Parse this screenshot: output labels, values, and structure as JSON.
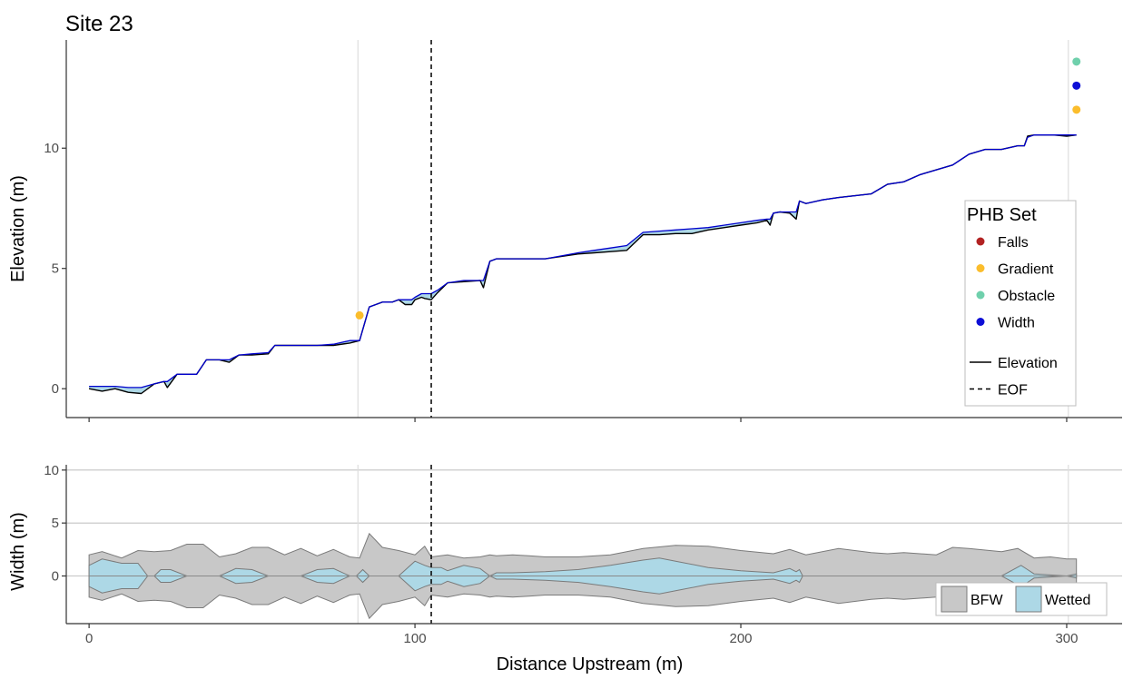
{
  "chart_data": [
    {
      "type": "line",
      "panel": "elevation",
      "title": "Site 23",
      "xlabel": "",
      "ylabel": "Elevation (m)",
      "xlim": [
        -7,
        317
      ],
      "ylim": [
        -1.2,
        14.5
      ],
      "x_ticks": [
        0,
        100,
        200,
        300
      ],
      "x_tick_labels": [
        "",
        "",
        "",
        ""
      ],
      "y_ticks": [
        0,
        5,
        10
      ],
      "y_tick_labels": [
        "0",
        "5",
        "10"
      ],
      "grid": false,
      "vlines": [
        {
          "x": 82.5,
          "style": "solid",
          "color": "#dedede"
        },
        {
          "x": 300.5,
          "style": "solid",
          "color": "#dedede"
        },
        {
          "x": 105,
          "style": "dashed",
          "color": "#000000",
          "series": "EOF"
        }
      ],
      "series": [
        {
          "name": "Elevation",
          "color": "#000000",
          "x": [
            0,
            4,
            8,
            12,
            16,
            20,
            23,
            24,
            27,
            30,
            33,
            36,
            40,
            43,
            46,
            50,
            55,
            57,
            60,
            65,
            70,
            75,
            80,
            83,
            86,
            90,
            93,
            95,
            97,
            99,
            100,
            102,
            103,
            105,
            107,
            110,
            115,
            120,
            121,
            123,
            125,
            130,
            140,
            150,
            155,
            160,
            165,
            170,
            175,
            180,
            185,
            190,
            195,
            200,
            205,
            208,
            209,
            210,
            212,
            215,
            217,
            218,
            220,
            225,
            230,
            240,
            245,
            250,
            255,
            260,
            265,
            270,
            275,
            280,
            285,
            287,
            288,
            290,
            293,
            296,
            300,
            303
          ],
          "y": [
            0,
            -0.1,
            0,
            -0.15,
            -0.2,
            0.2,
            0.3,
            0.05,
            0.6,
            0.6,
            0.6,
            1.2,
            1.2,
            1.1,
            1.4,
            1.4,
            1.45,
            1.8,
            1.8,
            1.8,
            1.8,
            1.8,
            1.9,
            2.0,
            3.4,
            3.6,
            3.6,
            3.7,
            3.5,
            3.5,
            3.7,
            3.8,
            3.75,
            3.7,
            4.0,
            4.4,
            4.45,
            4.5,
            4.2,
            5.3,
            5.4,
            5.4,
            5.4,
            5.6,
            5.65,
            5.7,
            5.75,
            6.4,
            6.4,
            6.45,
            6.45,
            6.6,
            6.7,
            6.8,
            6.9,
            7.0,
            6.8,
            7.3,
            7.35,
            7.3,
            7.05,
            7.8,
            7.7,
            7.85,
            7.95,
            8.1,
            8.5,
            8.6,
            8.9,
            9.1,
            9.3,
            9.75,
            9.95,
            9.95,
            10.1,
            10.1,
            10.5,
            10.55,
            10.55,
            10.55,
            10.5,
            10.55
          ]
        },
        {
          "name": "",
          "color": "#0000cd",
          "x": [
            0,
            4,
            8,
            12,
            16,
            20,
            23,
            24,
            27,
            30,
            33,
            36,
            40,
            43,
            46,
            50,
            55,
            57,
            60,
            65,
            70,
            75,
            80,
            83,
            86,
            90,
            93,
            95,
            97,
            99,
            100,
            102,
            103,
            105,
            107,
            110,
            115,
            120,
            121,
            123,
            125,
            130,
            140,
            150,
            155,
            160,
            165,
            170,
            175,
            180,
            185,
            190,
            195,
            200,
            205,
            208,
            209,
            210,
            212,
            215,
            217,
            218,
            220,
            225,
            230,
            240,
            245,
            250,
            255,
            260,
            265,
            270,
            275,
            280,
            285,
            287,
            288,
            290,
            293,
            296,
            300,
            303
          ],
          "y": [
            0.1,
            0.1,
            0.1,
            0.05,
            0.05,
            0.2,
            0.3,
            0.3,
            0.6,
            0.6,
            0.6,
            1.2,
            1.2,
            1.2,
            1.4,
            1.45,
            1.5,
            1.8,
            1.8,
            1.8,
            1.8,
            1.85,
            2.0,
            2.0,
            3.4,
            3.6,
            3.6,
            3.7,
            3.7,
            3.7,
            3.8,
            3.95,
            3.95,
            3.95,
            4.1,
            4.4,
            4.5,
            4.5,
            4.5,
            5.3,
            5.4,
            5.4,
            5.4,
            5.65,
            5.75,
            5.85,
            5.95,
            6.5,
            6.55,
            6.6,
            6.65,
            6.7,
            6.8,
            6.9,
            7.0,
            7.05,
            7.05,
            7.3,
            7.35,
            7.35,
            7.35,
            7.8,
            7.7,
            7.85,
            7.95,
            8.1,
            8.5,
            8.6,
            8.9,
            9.1,
            9.3,
            9.75,
            9.95,
            9.95,
            10.1,
            10.1,
            10.45,
            10.55,
            10.55,
            10.55,
            10.55,
            10.55
          ]
        }
      ],
      "ribbon_fill": "#add8e6",
      "points": [
        {
          "x": 83,
          "y": 3.05,
          "category": "Gradient"
        },
        {
          "x": 303,
          "y": 13.6,
          "category": "Obstacle"
        },
        {
          "x": 303,
          "y": 12.6,
          "category": "Width"
        },
        {
          "x": 303,
          "y": 11.6,
          "category": "Gradient"
        }
      ],
      "legend": {
        "title": "PHB Set",
        "placement": "right-inside",
        "entries": [
          {
            "label": "Falls",
            "color": "#b22222",
            "kind": "point"
          },
          {
            "label": "Gradient",
            "color": "#fbbd2c",
            "kind": "point"
          },
          {
            "label": "Obstacle",
            "color": "#6fd0ac",
            "kind": "point"
          },
          {
            "label": "Width",
            "color": "#0d0ed6",
            "kind": "point"
          },
          {
            "label": "Elevation",
            "color": "#000000",
            "kind": "line"
          },
          {
            "label": "EOF",
            "color": "#000000",
            "kind": "dashed"
          }
        ]
      }
    },
    {
      "type": "area",
      "panel": "width",
      "title": "",
      "xlabel": "Distance Upstream (m)",
      "ylabel": "Width (m)",
      "xlim": [
        -7,
        317
      ],
      "ylim": [
        -4.5,
        10.5
      ],
      "x_ticks": [
        0,
        100,
        200,
        300
      ],
      "x_tick_labels": [
        "0",
        "100",
        "200",
        "300"
      ],
      "y_ticks": [
        0,
        5,
        10
      ],
      "y_tick_labels": [
        "0",
        "5",
        "10"
      ],
      "grid": true,
      "vlines": [
        {
          "x": 82.5,
          "style": "solid",
          "color": "#dedede"
        },
        {
          "x": 300.5,
          "style": "solid",
          "color": "#dedede"
        },
        {
          "x": 105,
          "style": "dashed",
          "color": "#000000",
          "series": "EOF"
        }
      ],
      "series": [
        {
          "name": "BFW",
          "color": "#c8c8c8",
          "x": [
            0,
            4,
            10,
            15,
            20,
            25,
            30,
            35,
            40,
            45,
            50,
            55,
            60,
            65,
            70,
            75,
            80,
            83,
            86,
            90,
            95,
            100,
            103,
            105,
            110,
            115,
            120,
            123,
            125,
            130,
            135,
            140,
            145,
            150,
            160,
            170,
            180,
            190,
            200,
            210,
            215,
            220,
            230,
            240,
            245,
            250,
            260,
            265,
            270,
            280,
            285,
            290,
            295,
            300,
            303
          ],
          "half_width": [
            2.0,
            2.3,
            1.7,
            2.4,
            2.3,
            2.4,
            3.0,
            3.0,
            1.8,
            2.1,
            2.7,
            2.7,
            2.0,
            2.6,
            1.9,
            2.5,
            1.8,
            1.7,
            4.0,
            2.7,
            2.4,
            2.0,
            2.8,
            1.8,
            2.0,
            1.7,
            1.8,
            2.0,
            1.9,
            2.0,
            1.9,
            1.8,
            1.8,
            1.8,
            2.0,
            2.6,
            2.9,
            2.8,
            2.4,
            2.1,
            2.5,
            2.0,
            2.6,
            2.2,
            2.1,
            2.2,
            2.0,
            2.7,
            2.6,
            2.3,
            2.6,
            1.7,
            1.8,
            1.6,
            1.6
          ]
        },
        {
          "name": "Wetted",
          "color": "#add8e6",
          "x": [
            0,
            4,
            10,
            15,
            18,
            20,
            22,
            25,
            30,
            40,
            45,
            50,
            55,
            60,
            65,
            70,
            75,
            80,
            82,
            84,
            86,
            88,
            95,
            100,
            103,
            105,
            108,
            110,
            115,
            120,
            123,
            125,
            130,
            140,
            150,
            160,
            170,
            175,
            180,
            190,
            200,
            210,
            215,
            217,
            218,
            219,
            230,
            240,
            280,
            286,
            288,
            290,
            300,
            303
          ],
          "half_width": [
            1.0,
            1.6,
            1.2,
            1.2,
            0,
            0,
            0.6,
            0.6,
            0,
            0,
            0.7,
            0.6,
            0,
            0,
            0,
            0.6,
            0.7,
            0,
            0,
            0.6,
            0,
            0,
            0,
            1.4,
            1.0,
            0.8,
            0.8,
            0.5,
            1.0,
            0.7,
            0,
            0.3,
            0.3,
            0.4,
            0.6,
            1.0,
            1.5,
            1.7,
            1.4,
            0.8,
            0.5,
            0.3,
            0.7,
            0.4,
            0.6,
            0,
            0,
            0,
            0,
            1.0,
            0.6,
            0.2,
            0,
            0.2
          ]
        }
      ],
      "legend": {
        "placement": "bottom-right",
        "entries": [
          {
            "label": "BFW",
            "color": "#c8c8c8"
          },
          {
            "label": "Wetted",
            "color": "#add8e6"
          }
        ]
      }
    }
  ]
}
